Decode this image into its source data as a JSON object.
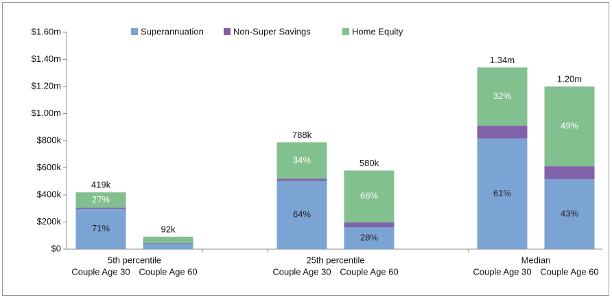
{
  "chart_data": {
    "type": "stacked_bar",
    "groups": [
      "5th percentile",
      "25th percentile",
      "Median"
    ],
    "categories": [
      "Couple Age 30",
      "Couple Age 60",
      "Couple Age 30",
      "Couple Age 60",
      "Couple Age 30",
      "Couple Age 60"
    ],
    "series": [
      {
        "name": "Superannuation",
        "color": "#7ba3d4",
        "values": [
          297000,
          40000,
          504000,
          162000,
          817000,
          516000
        ],
        "share_labels": [
          "71%",
          null,
          "64%",
          "28%",
          "61%",
          "43%"
        ],
        "label_color": "#222222"
      },
      {
        "name": "Non-Super Savings",
        "color": "#8062a8",
        "values": [
          9000,
          5000,
          16000,
          35000,
          94000,
          96000
        ],
        "share_labels": [
          null,
          null,
          null,
          null,
          null,
          null
        ],
        "label_color": "#ffffff"
      },
      {
        "name": "Home Equity",
        "color": "#82c08f",
        "values": [
          113000,
          47000,
          268000,
          383000,
          429000,
          588000
        ],
        "share_labels": [
          "27%",
          null,
          "34%",
          "66%",
          "32%",
          "49%"
        ],
        "label_color": "#ffffff"
      }
    ],
    "totals": [
      419000,
      92000,
      788000,
      580000,
      1340000,
      1200000
    ],
    "total_labels": [
      "419k",
      "92k",
      "788k",
      "580k",
      "1.34m",
      "1.20m"
    ],
    "ylim": [
      0,
      1600000
    ],
    "yticks": [
      {
        "value": 0,
        "label": "$0"
      },
      {
        "value": 200000,
        "label": "$200k"
      },
      {
        "value": 400000,
        "label": "$400k"
      },
      {
        "value": 600000,
        "label": "$600k"
      },
      {
        "value": 800000,
        "label": "$800k"
      },
      {
        "value": 1000000,
        "label": "$1.00m"
      },
      {
        "value": 1200000,
        "label": "$1.20m"
      },
      {
        "value": 1400000,
        "label": "$1.40m"
      },
      {
        "value": 1600000,
        "label": "$1.60m"
      }
    ],
    "grid": false,
    "legend": "top"
  }
}
